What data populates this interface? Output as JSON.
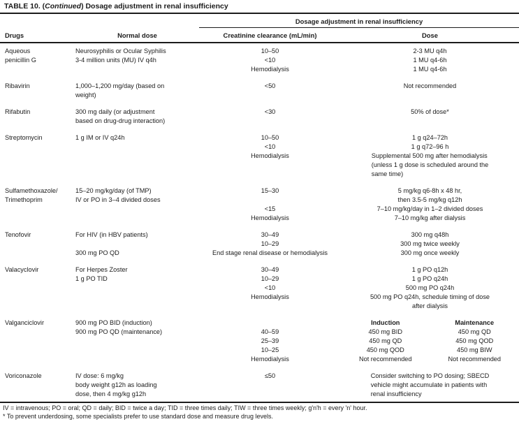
{
  "title": {
    "prefix": "TABLE 10. (",
    "italic": "Continued",
    "suffix": ") Dosage adjustment in renal insufficiency"
  },
  "header": {
    "span": "Dosage adjustment in renal insufficiency",
    "drugs": "Drugs",
    "normal_dose": "Normal dose",
    "creatinine_clearance": "Creatinine clearance (mL/min)",
    "dose": "Dose"
  },
  "rows": [
    {
      "drug": [
        "Aqueous",
        "penicillin G"
      ],
      "normal": [
        "Neurosyphilis or Ocular Syphilis",
        "3-4 million units (MU) IV q4h"
      ],
      "clearance": [
        "10–50",
        "<10",
        "Hemodialysis"
      ],
      "dose": [
        "2-3 MU q4h",
        "1 MU q4-6h",
        "1 MU q4-6h"
      ]
    },
    {
      "drug": [
        "Ribavirin"
      ],
      "normal": [
        "1,000–1,200 mg/day (based on",
        "weight)"
      ],
      "clearance": [
        "<50"
      ],
      "dose": [
        "Not recommended"
      ]
    },
    {
      "drug": [
        "Rifabutin"
      ],
      "normal": [
        "300 mg daily (or adjustment",
        "based on drug-drug interaction)"
      ],
      "clearance": [
        "<30"
      ],
      "dose": [
        "50% of dose*"
      ]
    },
    {
      "drug": [
        "Streptomycin"
      ],
      "normal": [
        "1 g IM or IV q24h"
      ],
      "clearance": [
        "10–50",
        "<10",
        "Hemodialysis"
      ],
      "dose": [
        "1 g q24–72h",
        "1 g q72–96 h",
        "Supplemental 500 mg after hemodialysis",
        "(unless 1 g dose is scheduled around the",
        "same time)"
      ]
    },
    {
      "drug": [
        "Sulfamethoxazole/",
        "Trimethoprim"
      ],
      "normal": [
        "15–20 mg/kg/day (of TMP)",
        "IV or PO in 3–4 divided doses"
      ],
      "clearance": [
        "15–30",
        "",
        "<15",
        "Hemodialysis"
      ],
      "dose": [
        "5 mg/kg q6-8h x 48 hr,",
        "then 3.5-5 mg/kg q12h",
        "7–10 mg/kg/day in 1–2 divided doses",
        "7–10 mg/kg after dialysis"
      ]
    },
    {
      "drug": [
        "Tenofovir"
      ],
      "normal": [
        "For HIV (in HBV patients)",
        "",
        "300 mg PO QD"
      ],
      "clearance": [
        "30–49",
        "10–29",
        "End stage renal disease or hemodialysis"
      ],
      "dose": [
        "300 mg q48h",
        "300 mg twice weekly",
        "300 mg once weekly"
      ]
    },
    {
      "drug": [
        "Valacyclovir"
      ],
      "normal": [
        "For Herpes Zoster",
        "1 g PO TID"
      ],
      "clearance": [
        "30–49",
        "10–29",
        "<10",
        "Hemodialysis"
      ],
      "dose": [
        "1 g PO q12h",
        "1 g PO q24h",
        "500 mg PO q24h",
        "500 mg PO q24h, schedule timing of dose",
        "after dialysis"
      ]
    },
    {
      "drug": [
        "Valganciclovir"
      ],
      "normal": [
        "900 mg PO BID (induction)",
        "900 mg PO QD (maintenance)"
      ],
      "clearance": [
        "",
        "40–59",
        "25–39",
        "10–25",
        "Hemodialysis"
      ],
      "induction": [
        "Induction",
        "450 mg BID",
        "450 mg QD",
        "450 mg QOD",
        "Not recommended"
      ],
      "maintenance": [
        "Maintenance",
        "450 mg QD",
        "450 mg QOD",
        "450 mg BIW",
        "Not recommended"
      ]
    },
    {
      "drug": [
        "Voriconazole"
      ],
      "normal": [
        "IV dose: 6 mg/kg",
        "body weight g12h as loading",
        "dose, then 4 mg/kg g12h"
      ],
      "clearance": [
        "≤50"
      ],
      "dose": [
        "Consider switching to PO dosing; SBECD",
        "vehicle might accumulate in patients with",
        "renal insufficiency"
      ]
    }
  ],
  "footnotes": [
    "IV = intravenous; PO = oral; QD = daily; BID = twice a day; TID = three times daily; TIW = three times weekly; g'n'h = every 'n' hour.",
    "* To prevent underdosing, some specialists prefer to use standard dose and measure drug levels."
  ],
  "colors": {
    "ink": "#1c1c1c",
    "background": "#ffffff"
  }
}
